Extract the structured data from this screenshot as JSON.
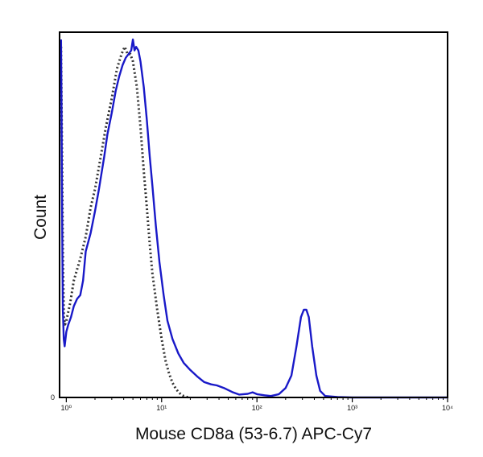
{
  "chart_data": {
    "type": "line",
    "xlabel": "Mouse CD8a (53-6.7) APC-Cy7",
    "ylabel": "Count",
    "x_scale": "log",
    "xlim": [
      0.85,
      10000
    ],
    "ylim": [
      0,
      100
    ],
    "x_ticks": [
      {
        "value": 1,
        "label": "10⁰"
      },
      {
        "value": 10,
        "label": "10¹"
      },
      {
        "value": 100,
        "label": "10²"
      },
      {
        "value": 1000,
        "label": "10³"
      },
      {
        "value": 10000,
        "label": "10⁴"
      }
    ],
    "y_ticks": [
      {
        "value": 0,
        "label": "0"
      }
    ],
    "grid": false,
    "legend": "none",
    "series": [
      {
        "style": "solid",
        "color": "#1919c8",
        "points": [
          [
            0.88,
            98
          ],
          [
            0.89,
            80
          ],
          [
            0.9,
            60
          ],
          [
            0.91,
            40
          ],
          [
            0.92,
            24
          ],
          [
            0.94,
            16
          ],
          [
            0.96,
            14
          ],
          [
            1.0,
            18
          ],
          [
            1.05,
            20
          ],
          [
            1.12,
            22
          ],
          [
            1.2,
            25
          ],
          [
            1.3,
            27
          ],
          [
            1.4,
            28
          ],
          [
            1.5,
            32
          ],
          [
            1.6,
            40
          ],
          [
            1.8,
            45
          ],
          [
            2.0,
            51
          ],
          [
            2.2,
            57
          ],
          [
            2.5,
            66
          ],
          [
            2.7,
            72
          ],
          [
            3.0,
            78
          ],
          [
            3.3,
            84
          ],
          [
            3.6,
            88
          ],
          [
            3.9,
            91
          ],
          [
            4.2,
            93
          ],
          [
            4.5,
            94
          ],
          [
            4.8,
            95
          ],
          [
            5.0,
            98
          ],
          [
            5.2,
            95
          ],
          [
            5.4,
            96
          ],
          [
            5.7,
            95
          ],
          [
            6.0,
            92
          ],
          [
            6.5,
            85
          ],
          [
            7.0,
            76
          ],
          [
            7.5,
            66
          ],
          [
            8.0,
            58
          ],
          [
            8.7,
            47
          ],
          [
            9.5,
            37
          ],
          [
            10.5,
            28
          ],
          [
            11.5,
            21
          ],
          [
            13,
            16
          ],
          [
            15,
            12
          ],
          [
            17,
            9.5
          ],
          [
            20,
            7.5
          ],
          [
            24,
            5.6
          ],
          [
            28,
            4.2
          ],
          [
            33,
            3.6
          ],
          [
            38,
            3.3
          ],
          [
            45,
            2.6
          ],
          [
            55,
            1.5
          ],
          [
            65,
            0.8
          ],
          [
            80,
            1.0
          ],
          [
            90,
            1.4
          ],
          [
            100,
            0.9
          ],
          [
            120,
            0.6
          ],
          [
            140,
            0.4
          ],
          [
            170,
            0.9
          ],
          [
            200,
            2.6
          ],
          [
            230,
            6.0
          ],
          [
            260,
            14
          ],
          [
            290,
            22
          ],
          [
            310,
            24
          ],
          [
            330,
            24
          ],
          [
            350,
            22
          ],
          [
            380,
            14
          ],
          [
            420,
            6
          ],
          [
            460,
            1.8
          ],
          [
            520,
            0.4
          ],
          [
            700,
            0.1
          ],
          [
            1000,
            0
          ],
          [
            3000,
            0
          ],
          [
            10000,
            0
          ]
        ]
      },
      {
        "style": "dotted",
        "color": "#333333",
        "points": [
          [
            0.88,
            96
          ],
          [
            0.9,
            70
          ],
          [
            0.92,
            40
          ],
          [
            0.94,
            22
          ],
          [
            0.97,
            20
          ],
          [
            1.0,
            21
          ],
          [
            1.1,
            26
          ],
          [
            1.2,
            32
          ],
          [
            1.4,
            38
          ],
          [
            1.6,
            44
          ],
          [
            1.8,
            52
          ],
          [
            2.0,
            57
          ],
          [
            2.3,
            66
          ],
          [
            2.6,
            74
          ],
          [
            3.0,
            82
          ],
          [
            3.4,
            90
          ],
          [
            3.8,
            94
          ],
          [
            4.1,
            96
          ],
          [
            4.4,
            94
          ],
          [
            4.7,
            94
          ],
          [
            5.0,
            92
          ],
          [
            5.5,
            85
          ],
          [
            6.0,
            74
          ],
          [
            6.5,
            62
          ],
          [
            7.0,
            52
          ],
          [
            7.5,
            42
          ],
          [
            8.0,
            34
          ],
          [
            9.0,
            24
          ],
          [
            10.0,
            16
          ],
          [
            11.0,
            10
          ],
          [
            12.0,
            6.5
          ],
          [
            13.0,
            4.0
          ],
          [
            14.0,
            2.5
          ],
          [
            15.0,
            1.5
          ],
          [
            16.0,
            0.8
          ],
          [
            17.0,
            0.4
          ],
          [
            18.5,
            0.1
          ],
          [
            20,
            0
          ]
        ]
      }
    ]
  }
}
